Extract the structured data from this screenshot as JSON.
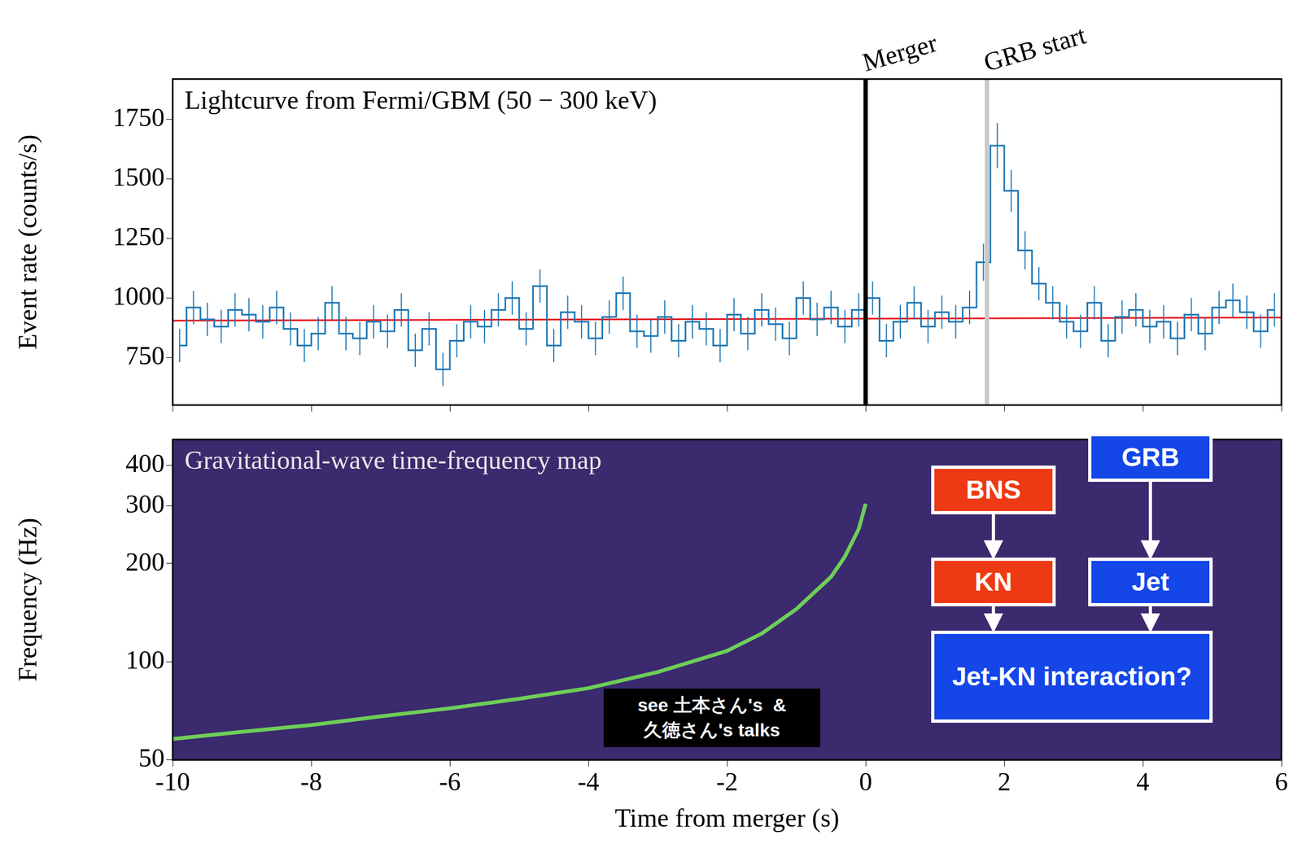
{
  "chart_data": [
    {
      "type": "line",
      "annotations": [
        {
          "text": "Lightcurve from Fermi/GBM (50 − 300 keV)"
        },
        {
          "text": "Merger",
          "x": 0,
          "color": "#000000"
        },
        {
          "text": "GRB start",
          "x": 1.75,
          "color": "#c8c8c8"
        }
      ],
      "y_label": "Event rate (counts/s)",
      "xlim": [
        -10,
        6
      ],
      "xticks": [
        -10,
        -8,
        -6,
        -4,
        -2,
        0,
        2,
        4,
        6
      ],
      "ylim": [
        550,
        1920
      ],
      "yticks": [
        750,
        1000,
        1250,
        1500,
        1750
      ],
      "grid": false,
      "tick_labels": "y",
      "series": [
        {
          "color": "#1f77b4",
          "line_style": "steps",
          "x": [
            -9.9,
            -9.7,
            -9.5,
            -9.3,
            -9.1,
            -8.9,
            -8.7,
            -8.5,
            -8.3,
            -8.1,
            -7.9,
            -7.7,
            -7.5,
            -7.3,
            -7.1,
            -6.9,
            -6.7,
            -6.5,
            -6.3,
            -6.1,
            -5.9,
            -5.7,
            -5.5,
            -5.3,
            -5.1,
            -4.9,
            -4.7,
            -4.5,
            -4.3,
            -4.1,
            -3.9,
            -3.7,
            -3.5,
            -3.3,
            -3.1,
            -2.9,
            -2.7,
            -2.5,
            -2.3,
            -2.1,
            -1.9,
            -1.7,
            -1.5,
            -1.3,
            -1.1,
            -0.9,
            -0.7,
            -0.5,
            -0.3,
            -0.1,
            0.1,
            0.3,
            0.5,
            0.7,
            0.9,
            1.1,
            1.3,
            1.5,
            1.7,
            1.9,
            2.1,
            2.3,
            2.5,
            2.7,
            2.9,
            3.1,
            3.3,
            3.5,
            3.7,
            3.9,
            4.1,
            4.3,
            4.5,
            4.7,
            4.9,
            5.1,
            5.3,
            5.5,
            5.7,
            5.9
          ],
          "values": [
            800,
            960,
            910,
            880,
            950,
            930,
            900,
            960,
            870,
            800,
            850,
            980,
            850,
            830,
            900,
            860,
            950,
            780,
            870,
            700,
            820,
            900,
            880,
            950,
            1000,
            870,
            1050,
            800,
            940,
            900,
            830,
            920,
            1020,
            860,
            840,
            920,
            820,
            900,
            870,
            800,
            930,
            850,
            950,
            890,
            830,
            1000,
            910,
            960,
            880,
            950,
            1000,
            820,
            900,
            980,
            880,
            940,
            900,
            960,
            1150,
            1640,
            1450,
            1200,
            1060,
            980,
            900,
            860,
            980,
            820,
            920,
            950,
            880,
            900,
            830,
            930,
            850,
            960,
            990,
            940,
            860,
            950
          ],
          "errors": [
            70,
            70,
            70,
            70,
            70,
            70,
            70,
            70,
            70,
            70,
            70,
            70,
            70,
            70,
            70,
            70,
            70,
            70,
            70,
            70,
            70,
            70,
            70,
            70,
            70,
            70,
            70,
            70,
            70,
            70,
            70,
            70,
            70,
            70,
            70,
            70,
            70,
            70,
            70,
            70,
            70,
            70,
            70,
            70,
            70,
            70,
            70,
            70,
            70,
            70,
            70,
            70,
            70,
            70,
            70,
            70,
            70,
            70,
            78,
            95,
            88,
            80,
            70,
            70,
            70,
            70,
            70,
            70,
            70,
            70,
            70,
            70,
            70,
            70,
            70,
            70,
            70,
            70,
            70,
            70
          ]
        },
        {
          "color": "#e8141c",
          "x": [
            -10,
            6
          ],
          "values": [
            905,
            918
          ]
        }
      ]
    },
    {
      "type": "line",
      "annotations": [
        {
          "text": "Gravitational-wave time-frequency map"
        }
      ],
      "x_label": "Time from merger (s)",
      "y_label": "Frequency (Hz)",
      "log": "y",
      "xlim": [
        -10,
        6
      ],
      "xticks": [
        -10,
        -8,
        -6,
        -4,
        -2,
        0,
        2,
        4,
        6
      ],
      "ylim": [
        50,
        480
      ],
      "yticks": [
        50,
        100,
        200,
        300,
        400
      ],
      "grid": false,
      "series": [
        {
          "color": "#6ece58",
          "x": [
            -10,
            -9,
            -8,
            -7,
            -6,
            -5,
            -4,
            -3,
            -2,
            -1.5,
            -1,
            -0.5,
            -0.3,
            -0.1,
            0
          ],
          "values": [
            58,
            61,
            64,
            68,
            72,
            77,
            83,
            93,
            108,
            122,
            145,
            182,
            210,
            255,
            305
          ]
        }
      ]
    }
  ],
  "overlay": {
    "nodes": [
      {
        "label": "BNS",
        "color": "#ee3a14"
      },
      {
        "label": "KN",
        "color": "#ee3a14"
      },
      {
        "label": "GRB",
        "color": "#1446e8"
      },
      {
        "label": "Jet",
        "color": "#1446e8"
      },
      {
        "label": "Jet-KN interaction?",
        "color": "#1446e8"
      }
    ],
    "edges": [
      [
        0,
        1
      ],
      [
        2,
        3
      ],
      [
        1,
        4
      ],
      [
        3,
        4
      ]
    ],
    "note": {
      "lines": [
        "see 土本さん's  &",
        "久徳さん's talks"
      ],
      "color": "#000000"
    }
  }
}
